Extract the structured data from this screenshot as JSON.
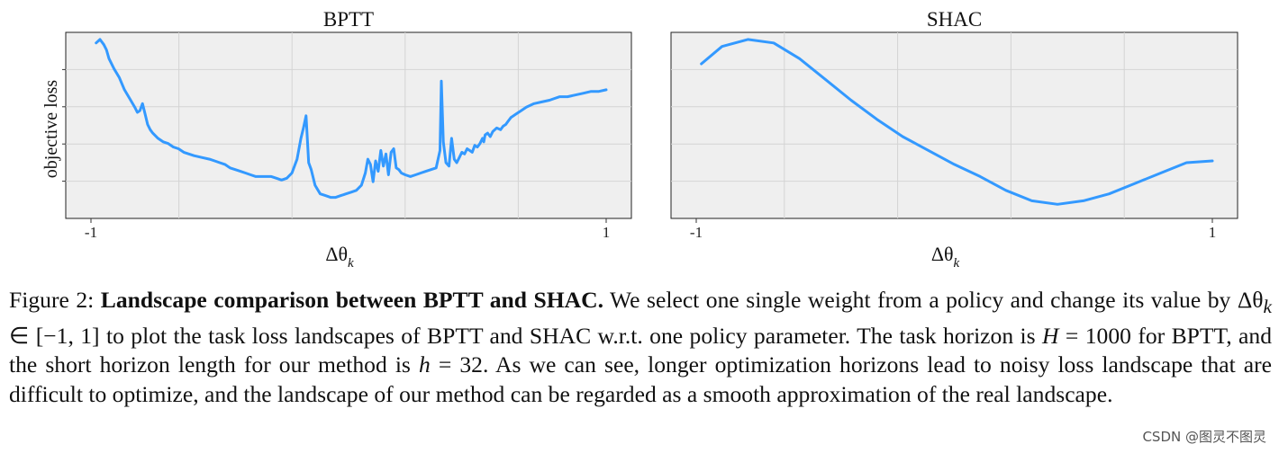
{
  "chart_data": [
    {
      "type": "line",
      "title": "BPTT",
      "ylabel": "objective loss",
      "xlabel": "Δθ_k",
      "x_tick_labels": [
        "-1",
        "1"
      ],
      "xlim": [
        -1,
        1
      ],
      "ylim": [
        0,
        1
      ],
      "grid": true,
      "series": [
        {
          "color": "#3399ff",
          "x": [
            -0.98,
            -0.965,
            -0.95,
            -0.94,
            -0.93,
            -0.91,
            -0.89,
            -0.87,
            -0.85,
            -0.83,
            -0.82,
            -0.81,
            -0.8,
            -0.79,
            -0.78,
            -0.77,
            -0.76,
            -0.74,
            -0.72,
            -0.7,
            -0.68,
            -0.66,
            -0.64,
            -0.62,
            -0.6,
            -0.57,
            -0.54,
            -0.52,
            -0.5,
            -0.48,
            -0.46,
            -0.44,
            -0.42,
            -0.4,
            -0.38,
            -0.36,
            -0.3,
            -0.28,
            -0.26,
            -0.24,
            -0.22,
            -0.2,
            -0.185,
            -0.175,
            -0.165,
            -0.155,
            -0.145,
            -0.13,
            -0.11,
            -0.09,
            -0.07,
            -0.05,
            -0.03,
            -0.01,
            0.01,
            0.03,
            0.05,
            0.065,
            0.075,
            0.085,
            0.095,
            0.105,
            0.115,
            0.125,
            0.135,
            0.145,
            0.155,
            0.165,
            0.175,
            0.185,
            0.195,
            0.205,
            0.22,
            0.24,
            0.26,
            0.28,
            0.3,
            0.32,
            0.34,
            0.355,
            0.36,
            0.368,
            0.378,
            0.39,
            0.4,
            0.41,
            0.42,
            0.43,
            0.44,
            0.45,
            0.46,
            0.47,
            0.48,
            0.49,
            0.5,
            0.51,
            0.52,
            0.525,
            0.53,
            0.54,
            0.55,
            0.56,
            0.575,
            0.59,
            0.6,
            0.61,
            0.62,
            0.63,
            0.65,
            0.67,
            0.69,
            0.72,
            0.75,
            0.78,
            0.8,
            0.82,
            0.85,
            0.88,
            0.91,
            0.94,
            0.97,
            1.0
          ],
          "y": [
            0.97,
            0.99,
            0.96,
            0.93,
            0.88,
            0.82,
            0.77,
            0.7,
            0.65,
            0.6,
            0.57,
            0.58,
            0.62,
            0.56,
            0.5,
            0.47,
            0.45,
            0.42,
            0.4,
            0.39,
            0.37,
            0.36,
            0.34,
            0.33,
            0.32,
            0.31,
            0.3,
            0.29,
            0.28,
            0.27,
            0.25,
            0.24,
            0.23,
            0.22,
            0.21,
            0.2,
            0.2,
            0.19,
            0.18,
            0.19,
            0.22,
            0.3,
            0.42,
            0.48,
            0.55,
            0.28,
            0.24,
            0.15,
            0.1,
            0.09,
            0.08,
            0.08,
            0.09,
            0.1,
            0.11,
            0.12,
            0.15,
            0.22,
            0.3,
            0.27,
            0.17,
            0.29,
            0.23,
            0.35,
            0.26,
            0.33,
            0.21,
            0.34,
            0.36,
            0.25,
            0.24,
            0.22,
            0.21,
            0.2,
            0.21,
            0.22,
            0.23,
            0.24,
            0.25,
            0.35,
            0.75,
            0.4,
            0.28,
            0.26,
            0.42,
            0.3,
            0.28,
            0.31,
            0.34,
            0.33,
            0.36,
            0.35,
            0.34,
            0.38,
            0.37,
            0.39,
            0.42,
            0.4,
            0.44,
            0.45,
            0.43,
            0.46,
            0.48,
            0.47,
            0.49,
            0.5,
            0.52,
            0.54,
            0.56,
            0.58,
            0.6,
            0.62,
            0.63,
            0.64,
            0.65,
            0.66,
            0.66,
            0.67,
            0.68,
            0.69,
            0.69,
            0.7
          ]
        }
      ]
    },
    {
      "type": "line",
      "title": "SHAC",
      "xlabel": "Δθ_k",
      "x_tick_labels": [
        "-1",
        "1"
      ],
      "xlim": [
        -1,
        1
      ],
      "ylim": [
        0,
        1
      ],
      "grid": true,
      "series": [
        {
          "color": "#3399ff",
          "x": [
            -0.98,
            -0.9,
            -0.8,
            -0.7,
            -0.6,
            -0.5,
            -0.4,
            -0.3,
            -0.2,
            -0.1,
            0.0,
            0.1,
            0.2,
            0.3,
            0.4,
            0.5,
            0.6,
            0.7,
            0.8,
            0.9,
            1.0
          ],
          "y": [
            0.85,
            0.95,
            0.99,
            0.97,
            0.88,
            0.76,
            0.64,
            0.53,
            0.43,
            0.35,
            0.27,
            0.2,
            0.12,
            0.06,
            0.04,
            0.06,
            0.1,
            0.16,
            0.22,
            0.28,
            0.29
          ]
        }
      ]
    }
  ],
  "caption": {
    "figure_label": "Figure 2: ",
    "bold_title": "Landscape comparison between BPTT and SHAC.",
    "sentence_1": " We select one single weight from a policy and change its value by ",
    "math_delta": "Δθ",
    "math_k": "k",
    "math_interval": " ∈ [−1, 1]",
    "sentence_2": " to plot the task loss landscapes of BPTT and SHAC w.r.t. one policy parameter. The task horizon is ",
    "math_H": "H",
    "math_H_value": " = 1000",
    "sentence_3": " for BPTT, and the short horizon length for our method is ",
    "math_h": "h",
    "math_h_value": " = 32",
    "sentence_4": ". As we can see, longer optimization horizons lead to noisy loss landscape that are difficult to optimize, and the landscape of our method can be regarded as a smooth approximation of the real landscape."
  },
  "watermark": "CSDN @图灵不图灵"
}
